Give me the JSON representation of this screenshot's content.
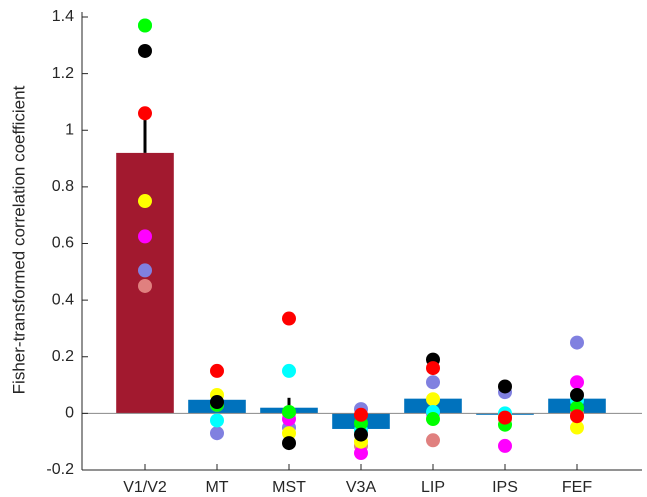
{
  "chart_data": {
    "type": "bar",
    "ylabel": "Fisher-transformed correlation coefficient",
    "categories": [
      "V1/V2",
      "MT",
      "MST",
      "V3A",
      "LIP",
      "IPS",
      "FEF"
    ],
    "values": [
      0.92,
      0.048,
      0.02,
      -0.055,
      0.052,
      -0.005,
      0.052
    ],
    "errors": [
      0.14,
      0.02,
      0.035,
      0.02,
      0.02,
      0.015,
      0.02
    ],
    "colors": [
      "#a2192f",
      "#0072bd",
      "#0072bd",
      "#0072bd",
      "#0072bd",
      "#0072bd",
      "#0072bd"
    ],
    "ylim": [
      -0.2,
      1.4
    ],
    "yticks": [
      -0.2,
      0,
      0.2,
      0.4,
      0.6,
      0.8,
      1,
      1.2,
      1.4
    ],
    "points": [
      {
        "color": "#e0807f",
        "values": [
          0.45,
          0.03,
          0.0,
          -0.115,
          -0.095,
          -0.02,
          0.0
        ]
      },
      {
        "color": "#8080e0",
        "values": [
          0.505,
          -0.07,
          -0.05,
          0.015,
          0.11,
          0.075,
          0.25
        ]
      },
      {
        "color": "#ff00ff",
        "values": [
          0.625,
          0.03,
          -0.02,
          -0.14,
          0.0,
          -0.115,
          0.11
        ]
      },
      {
        "color": "#ffff00",
        "values": [
          0.75,
          0.065,
          -0.07,
          -0.1,
          0.05,
          -0.01,
          -0.05
        ]
      },
      {
        "color": "#00ffff",
        "values": [
          1.37,
          -0.025,
          0.15,
          -0.06,
          0.005,
          0.0,
          0.045
        ]
      },
      {
        "color": "#00ff00",
        "values": [
          1.37,
          0.03,
          0.005,
          -0.035,
          -0.02,
          -0.04,
          0.02
        ]
      },
      {
        "color": "#000000",
        "values": [
          1.28,
          0.04,
          -0.105,
          -0.075,
          0.19,
          0.095,
          0.065
        ]
      },
      {
        "color": "#ff0000",
        "values": [
          1.06,
          0.15,
          0.335,
          -0.005,
          0.16,
          -0.015,
          -0.01
        ]
      }
    ]
  }
}
